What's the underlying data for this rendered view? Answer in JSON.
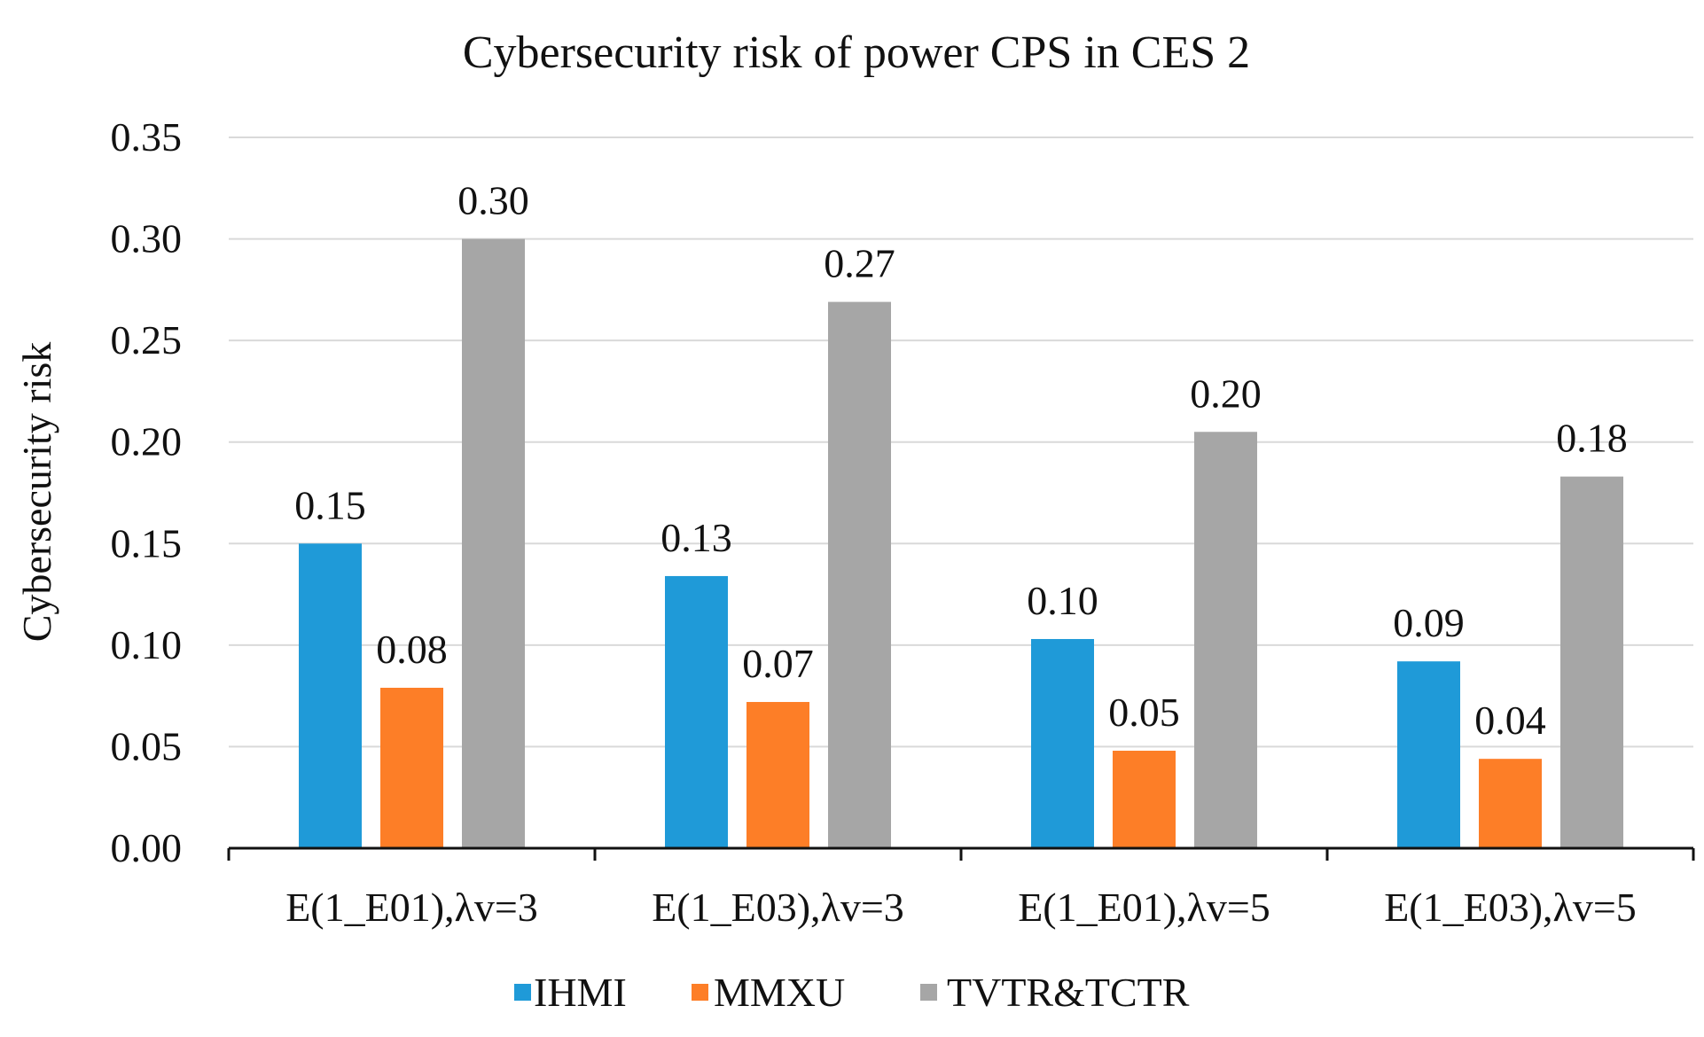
{
  "chart_data": {
    "type": "bar",
    "title": "Cybersecurity risk of  power CPS in CES 2",
    "xlabel": "",
    "ylabel": "Cybersecurity risk",
    "ylim": [
      0,
      0.35
    ],
    "yticks": [
      "0.00",
      "0.05",
      "0.10",
      "0.15",
      "0.20",
      "0.25",
      "0.30",
      "0.35"
    ],
    "categories": [
      "E(1_E01),λv=3",
      "E(1_E03),λv=3",
      "E(1_E01),λv=5",
      "E(1_E03),λv=5"
    ],
    "grid": true,
    "legend_position": "bottom",
    "series": [
      {
        "name": "IHMI",
        "color": "#1f9ad8",
        "values": [
          0.15,
          0.134,
          0.103,
          0.092
        ],
        "labels": [
          "0.15",
          "0.13",
          "0.10",
          "0.09"
        ]
      },
      {
        "name": "MMXU",
        "color": "#fd7e27",
        "values": [
          0.079,
          0.072,
          0.048,
          0.044
        ],
        "labels": [
          "0.08",
          "0.07",
          "0.05",
          "0.04"
        ]
      },
      {
        "name": "TVTR&TCTR",
        "color": "#a6a6a6",
        "values": [
          0.3,
          0.269,
          0.205,
          0.183
        ],
        "labels": [
          "0.30",
          "0.27",
          "0.20",
          "0.18"
        ]
      }
    ]
  }
}
